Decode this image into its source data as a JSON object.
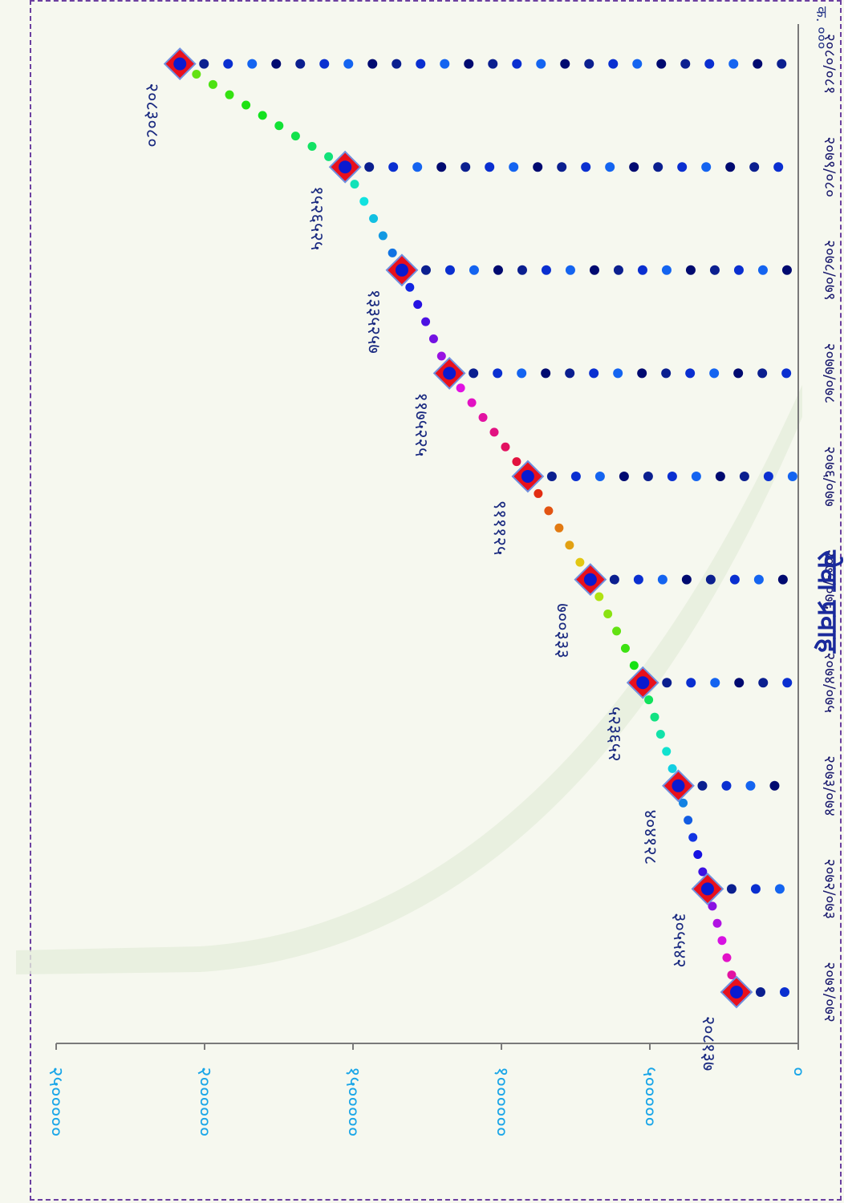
{
  "page": {
    "title": "सेवा प्रवाह",
    "code": "क. ०००"
  },
  "colors": {
    "axis": "#7a7a7a",
    "ytick": "#1aa6e8",
    "xtick": "#1a1a6e",
    "datalabel": "#1a2a80",
    "marker_fill": "#e8101c",
    "marker_dot": "#0a1ad0",
    "frame": "#6b3fa0",
    "title": "#1a2a9c",
    "dot_blues": [
      "#0b1f8f",
      "#0a2fd0",
      "#1464f0",
      "#000a70"
    ]
  },
  "chart_data": {
    "type": "line",
    "title": "",
    "xlabel": "",
    "ylabel": "",
    "categories": [
      "२०७१/०७२",
      "२०७२/०७३",
      "२०७३/०७४",
      "२०७४/०७५",
      "२०७५/०७६",
      "२०७६/०७७",
      "२०७७/०७८",
      "२०७८/०७९",
      "२०७९/०८०",
      "२०८०/०८१"
    ],
    "values": [
      208137,
      305542,
      404128,
      523652,
      700333,
      911125,
      1175225,
      1335257,
      1526525,
      2083080
    ],
    "value_labels": [
      "२०८१३७",
      "३०५५४२",
      "४०४१२८",
      "५२३६५२",
      "७००३३३",
      "९१११२५",
      "११७५२२५",
      "१३३५२५७",
      "१५२६५२५",
      "२०८३०८०"
    ],
    "ylim": [
      0,
      2500000
    ],
    "yticks": [
      0,
      500000,
      1000000,
      1500000,
      2000000,
      2500000
    ],
    "ytick_labels": [
      "०",
      "५०००००",
      "१००००००",
      "१५०००००",
      "२००००००",
      "२५०००००"
    ],
    "grid": false,
    "legend": "none",
    "orientation": "rotated-90-clockwise"
  }
}
